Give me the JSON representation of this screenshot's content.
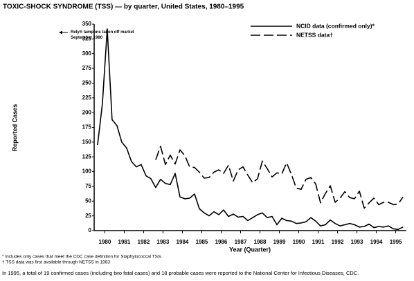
{
  "chart_data": {
    "type": "line",
    "title": "TOXIC-SHOCK SYNDROME (TSS) — by quarter, United States, 1980–1995",
    "ylabel": "Reported Cases",
    "xlabel": "Year (Quarter)",
    "annotation": "Rely® tampons taken off market September 1980",
    "footnotes": [
      "* Includes only cases that meet the CDC case definition for Staphylococcal TSS.",
      "† TSS data was first available through NETSS in 1983"
    ],
    "note": "In 1995, a total of 19 confirmed cases (including two fatal cases) and 18 probable cases were reported to the National Center for Infectious Diseases, CDC.",
    "x": [
      1980.125,
      1980.375,
      1980.625,
      1980.875,
      1981.125,
      1981.375,
      1981.625,
      1981.875,
      1982.125,
      1982.375,
      1982.625,
      1982.875,
      1983.125,
      1983.375,
      1983.625,
      1983.875,
      1984.125,
      1984.375,
      1984.625,
      1984.875,
      1985.125,
      1985.375,
      1985.625,
      1985.875,
      1986.125,
      1986.375,
      1986.625,
      1986.875,
      1987.125,
      1987.375,
      1987.625,
      1987.875,
      1988.125,
      1988.375,
      1988.625,
      1988.875,
      1989.125,
      1989.375,
      1989.625,
      1989.875,
      1990.125,
      1990.375,
      1990.625,
      1990.875,
      1991.125,
      1991.375,
      1991.625,
      1991.875,
      1992.125,
      1992.375,
      1992.625,
      1992.875,
      1993.125,
      1993.375,
      1993.625,
      1993.875,
      1994.125,
      1994.375,
      1994.625,
      1994.875,
      1995.125,
      1995.375,
      1995.625,
      1995.875
    ],
    "series": [
      {
        "name": "NCID data (confirmed only)*",
        "color": "#000000",
        "dash": false,
        "values": [
          145,
          215,
          342,
          188,
          178,
          150,
          140,
          117,
          108,
          112,
          93,
          88,
          73,
          87,
          80,
          78,
          97,
          57,
          54,
          55,
          62,
          37,
          30,
          25,
          32,
          27,
          35,
          24,
          28,
          23,
          24,
          17,
          22,
          27,
          30,
          22,
          24,
          10,
          21,
          17,
          16,
          12,
          13,
          15,
          22,
          16,
          8,
          10,
          18,
          12,
          8,
          10,
          12,
          10,
          6,
          7,
          11,
          5,
          7,
          6,
          8,
          3,
          2,
          6
        ]
      },
      {
        "name": "NETSS data†",
        "color": "#000000",
        "dash": true,
        "values": [
          null,
          null,
          null,
          null,
          null,
          null,
          null,
          null,
          null,
          null,
          null,
          null,
          120,
          143,
          112,
          128,
          113,
          137,
          127,
          108,
          107,
          99,
          89,
          90,
          99,
          103,
          97,
          111,
          84,
          103,
          108,
          94,
          81,
          88,
          118,
          105,
          91,
          98,
          96,
          115,
          95,
          72,
          70,
          87,
          90,
          79,
          47,
          63,
          76,
          48,
          55,
          66,
          56,
          54,
          67,
          38,
          47,
          55,
          44,
          48,
          48,
          44,
          45,
          57
        ]
      }
    ],
    "xlim": [
      1979.95,
      1996.05
    ],
    "xticks": [
      {
        "value": 1980.5,
        "label": "1980"
      },
      {
        "value": 1981.5,
        "label": "1981"
      },
      {
        "value": 1982.5,
        "label": "1982"
      },
      {
        "value": 1983.5,
        "label": "1983"
      },
      {
        "value": 1984.5,
        "label": "1984"
      },
      {
        "value": 1985.5,
        "label": "1985"
      },
      {
        "value": 1986.5,
        "label": "1986"
      },
      {
        "value": 1987.5,
        "label": "1987"
      },
      {
        "value": 1988.5,
        "label": "1988"
      },
      {
        "value": 1989.5,
        "label": "1989"
      },
      {
        "value": 1990.5,
        "label": "1990"
      },
      {
        "value": 1991.5,
        "label": "1991"
      },
      {
        "value": 1992.5,
        "label": "1992"
      },
      {
        "value": 1993.5,
        "label": "1993"
      },
      {
        "value": 1994.5,
        "label": "1994"
      },
      {
        "value": 1995.5,
        "label": "1995"
      }
    ],
    "ylim": [
      0,
      350
    ],
    "yticks": [
      0,
      25,
      50,
      75,
      100,
      125,
      150,
      175,
      200,
      225,
      250,
      275,
      300,
      325,
      350
    ],
    "grid": false,
    "legend": "upper right"
  }
}
